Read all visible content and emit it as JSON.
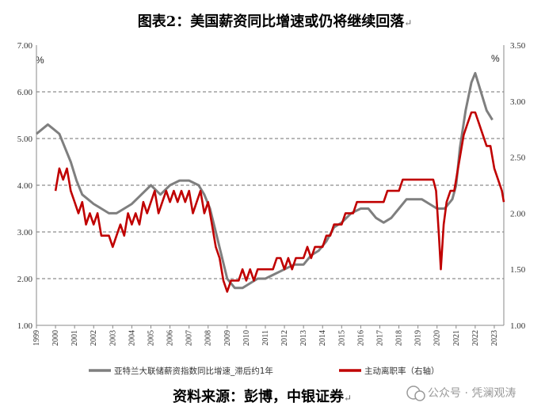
{
  "chart_data": {
    "type": "line",
    "title": "图表2：美国薪资同比增速或仍将继续回落",
    "title_mark": "↵",
    "left_axis": {
      "unit": "%",
      "ylim": [
        1.0,
        7.0
      ],
      "ticks": [
        "1.00",
        "2.00",
        "3.00",
        "4.00",
        "5.00",
        "6.00",
        "7.00"
      ],
      "tick_values": [
        1,
        2,
        3,
        4,
        5,
        6,
        7
      ]
    },
    "right_axis": {
      "unit": "%",
      "ylim": [
        1.0,
        3.5
      ],
      "ticks": [
        "1.00",
        "1.50",
        "2.00",
        "2.50",
        "3.00",
        "3.50"
      ],
      "tick_values": [
        1.0,
        1.5,
        2.0,
        2.5,
        3.0,
        3.5
      ]
    },
    "x_range": [
      1999,
      2023.5
    ],
    "x_ticks": [
      "1999",
      "2000",
      "2001",
      "2002",
      "2003",
      "2004",
      "2005",
      "2006",
      "2007",
      "2008",
      "2009",
      "2010",
      "2011",
      "2012",
      "2013",
      "2014",
      "2015",
      "2016",
      "2017",
      "2018",
      "2019",
      "2020",
      "2021",
      "2022",
      "2023"
    ],
    "series": [
      {
        "name": "亚特兰大联储薪资指数同比增速_滞后约1年",
        "axis": "left",
        "color": "#7f7f7f",
        "points": [
          [
            1999.0,
            5.1
          ],
          [
            1999.3,
            5.2
          ],
          [
            1999.6,
            5.3
          ],
          [
            1999.9,
            5.2
          ],
          [
            2000.2,
            5.1
          ],
          [
            2000.5,
            4.8
          ],
          [
            2000.8,
            4.5
          ],
          [
            2001.1,
            4.1
          ],
          [
            2001.4,
            3.8
          ],
          [
            2001.7,
            3.7
          ],
          [
            2002.0,
            3.6
          ],
          [
            2002.4,
            3.5
          ],
          [
            2002.8,
            3.4
          ],
          [
            2003.2,
            3.4
          ],
          [
            2003.6,
            3.5
          ],
          [
            2004.0,
            3.6
          ],
          [
            2004.5,
            3.8
          ],
          [
            2005.0,
            4.0
          ],
          [
            2005.5,
            3.8
          ],
          [
            2006.0,
            4.0
          ],
          [
            2006.5,
            4.1
          ],
          [
            2007.0,
            4.1
          ],
          [
            2007.5,
            4.0
          ],
          [
            2007.8,
            3.8
          ],
          [
            2008.1,
            3.5
          ],
          [
            2008.4,
            3.0
          ],
          [
            2008.7,
            2.5
          ],
          [
            2009.0,
            2.0
          ],
          [
            2009.4,
            1.8
          ],
          [
            2009.8,
            1.8
          ],
          [
            2010.2,
            1.9
          ],
          [
            2010.6,
            2.0
          ],
          [
            2011.0,
            2.0
          ],
          [
            2011.5,
            2.1
          ],
          [
            2012.0,
            2.2
          ],
          [
            2012.5,
            2.3
          ],
          [
            2013.0,
            2.3
          ],
          [
            2013.4,
            2.5
          ],
          [
            2013.8,
            2.6
          ],
          [
            2014.2,
            2.8
          ],
          [
            2014.6,
            3.1
          ],
          [
            2015.0,
            3.2
          ],
          [
            2015.5,
            3.4
          ],
          [
            2016.0,
            3.5
          ],
          [
            2016.4,
            3.5
          ],
          [
            2016.8,
            3.3
          ],
          [
            2017.2,
            3.2
          ],
          [
            2017.6,
            3.3
          ],
          [
            2018.0,
            3.5
          ],
          [
            2018.4,
            3.7
          ],
          [
            2018.8,
            3.7
          ],
          [
            2019.2,
            3.7
          ],
          [
            2019.6,
            3.6
          ],
          [
            2020.0,
            3.5
          ],
          [
            2020.4,
            3.5
          ],
          [
            2020.8,
            3.7
          ],
          [
            2021.0,
            4.0
          ],
          [
            2021.2,
            4.8
          ],
          [
            2021.5,
            5.6
          ],
          [
            2021.8,
            6.2
          ],
          [
            2022.0,
            6.4
          ],
          [
            2022.3,
            6.0
          ],
          [
            2022.6,
            5.6
          ],
          [
            2022.9,
            5.4
          ]
        ]
      },
      {
        "name": "主动离职率（右轴）",
        "axis": "right",
        "color": "#c00000",
        "points": [
          [
            2000.0,
            2.2
          ],
          [
            2000.2,
            2.4
          ],
          [
            2000.4,
            2.3
          ],
          [
            2000.6,
            2.4
          ],
          [
            2000.8,
            2.2
          ],
          [
            2001.0,
            2.1
          ],
          [
            2001.2,
            2.0
          ],
          [
            2001.4,
            2.1
          ],
          [
            2001.6,
            1.9
          ],
          [
            2001.8,
            2.0
          ],
          [
            2002.0,
            1.9
          ],
          [
            2002.2,
            2.0
          ],
          [
            2002.4,
            1.8
          ],
          [
            2002.6,
            1.8
          ],
          [
            2002.8,
            1.8
          ],
          [
            2003.0,
            1.7
          ],
          [
            2003.2,
            1.8
          ],
          [
            2003.4,
            1.9
          ],
          [
            2003.6,
            1.8
          ],
          [
            2003.8,
            2.0
          ],
          [
            2004.0,
            1.9
          ],
          [
            2004.2,
            2.0
          ],
          [
            2004.4,
            1.9
          ],
          [
            2004.6,
            2.1
          ],
          [
            2004.8,
            2.0
          ],
          [
            2005.0,
            2.1
          ],
          [
            2005.2,
            2.2
          ],
          [
            2005.4,
            2.0
          ],
          [
            2005.6,
            2.1
          ],
          [
            2005.8,
            2.2
          ],
          [
            2006.0,
            2.1
          ],
          [
            2006.2,
            2.2
          ],
          [
            2006.4,
            2.1
          ],
          [
            2006.6,
            2.2
          ],
          [
            2006.8,
            2.1
          ],
          [
            2007.0,
            2.2
          ],
          [
            2007.2,
            2.0
          ],
          [
            2007.4,
            2.1
          ],
          [
            2007.6,
            2.2
          ],
          [
            2007.8,
            2.0
          ],
          [
            2008.0,
            2.1
          ],
          [
            2008.2,
            1.9
          ],
          [
            2008.4,
            1.7
          ],
          [
            2008.6,
            1.6
          ],
          [
            2008.8,
            1.4
          ],
          [
            2009.0,
            1.3
          ],
          [
            2009.2,
            1.4
          ],
          [
            2009.4,
            1.4
          ],
          [
            2009.6,
            1.4
          ],
          [
            2009.8,
            1.5
          ],
          [
            2010.0,
            1.4
          ],
          [
            2010.2,
            1.5
          ],
          [
            2010.4,
            1.4
          ],
          [
            2010.6,
            1.5
          ],
          [
            2010.8,
            1.5
          ],
          [
            2011.0,
            1.5
          ],
          [
            2011.2,
            1.5
          ],
          [
            2011.4,
            1.5
          ],
          [
            2011.6,
            1.6
          ],
          [
            2011.8,
            1.6
          ],
          [
            2012.0,
            1.5
          ],
          [
            2012.2,
            1.6
          ],
          [
            2012.4,
            1.5
          ],
          [
            2012.6,
            1.6
          ],
          [
            2012.8,
            1.6
          ],
          [
            2013.0,
            1.6
          ],
          [
            2013.2,
            1.7
          ],
          [
            2013.4,
            1.6
          ],
          [
            2013.6,
            1.7
          ],
          [
            2013.8,
            1.7
          ],
          [
            2014.0,
            1.7
          ],
          [
            2014.2,
            1.8
          ],
          [
            2014.4,
            1.8
          ],
          [
            2014.6,
            1.9
          ],
          [
            2014.8,
            1.9
          ],
          [
            2015.0,
            1.9
          ],
          [
            2015.2,
            2.0
          ],
          [
            2015.4,
            2.0
          ],
          [
            2015.6,
            2.0
          ],
          [
            2015.8,
            2.1
          ],
          [
            2016.0,
            2.1
          ],
          [
            2016.2,
            2.1
          ],
          [
            2016.4,
            2.1
          ],
          [
            2016.6,
            2.1
          ],
          [
            2016.8,
            2.1
          ],
          [
            2017.0,
            2.1
          ],
          [
            2017.2,
            2.1
          ],
          [
            2017.4,
            2.2
          ],
          [
            2017.6,
            2.2
          ],
          [
            2017.8,
            2.2
          ],
          [
            2018.0,
            2.2
          ],
          [
            2018.2,
            2.3
          ],
          [
            2018.4,
            2.3
          ],
          [
            2018.6,
            2.3
          ],
          [
            2018.8,
            2.3
          ],
          [
            2019.0,
            2.3
          ],
          [
            2019.2,
            2.3
          ],
          [
            2019.4,
            2.3
          ],
          [
            2019.6,
            2.3
          ],
          [
            2019.8,
            2.3
          ],
          [
            2019.95,
            2.2
          ],
          [
            2020.1,
            1.8
          ],
          [
            2020.2,
            1.5
          ],
          [
            2020.35,
            1.9
          ],
          [
            2020.5,
            2.1
          ],
          [
            2020.7,
            2.2
          ],
          [
            2020.9,
            2.2
          ],
          [
            2021.0,
            2.3
          ],
          [
            2021.2,
            2.5
          ],
          [
            2021.4,
            2.7
          ],
          [
            2021.6,
            2.8
          ],
          [
            2021.8,
            2.9
          ],
          [
            2022.0,
            2.9
          ],
          [
            2022.2,
            2.8
          ],
          [
            2022.4,
            2.7
          ],
          [
            2022.6,
            2.6
          ],
          [
            2022.8,
            2.6
          ],
          [
            2023.0,
            2.4
          ],
          [
            2023.2,
            2.3
          ],
          [
            2023.4,
            2.2
          ],
          [
            2023.5,
            2.1
          ]
        ]
      }
    ],
    "legend": [
      {
        "label": "亚特兰大联储薪资指数同比增速_滞后约1年",
        "color": "#7f7f7f"
      },
      {
        "label": "主动离职率（右轴）",
        "color": "#c00000"
      }
    ],
    "source": "资料来源：彭博，中银证券",
    "source_mark": "↵",
    "watermark": "公众号 · 凭澜观涛"
  }
}
